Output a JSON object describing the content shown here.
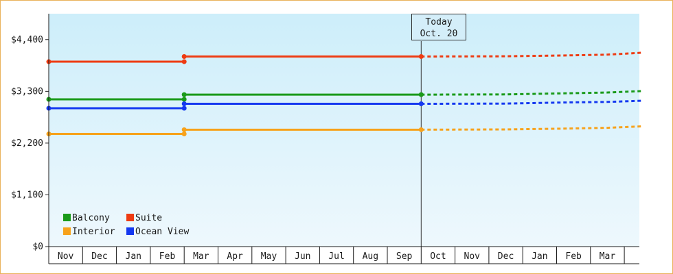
{
  "chart_data": {
    "type": "line",
    "categories": [
      "Nov",
      "Dec",
      "Jan",
      "Feb",
      "Mar",
      "Apr",
      "May",
      "Jun",
      "Jul",
      "Aug",
      "Sep",
      "Oct",
      "Nov",
      "Dec",
      "Jan",
      "Feb",
      "Mar"
    ],
    "ylim": [
      0,
      4950
    ],
    "yticks": [
      "$0",
      "$1,100",
      "$2,200",
      "$3,300",
      "$4,400"
    ],
    "ytick_values": [
      0,
      1100,
      2200,
      3300,
      4400
    ],
    "today_label": [
      "Today",
      "Oct. 20"
    ],
    "today_index": 11,
    "price_change_index": 4,
    "forecast_end_index": 17.5,
    "grid": false,
    "legend_placement": "bottom-left",
    "series": [
      {
        "name": "Suite",
        "color": "#ee3b12",
        "before": 3930,
        "after": 4040,
        "forecast": [
          [
            11,
            4040
          ],
          [
            13.5,
            4045
          ],
          [
            15,
            4060
          ],
          [
            16.5,
            4080
          ],
          [
            17.5,
            4120
          ]
        ]
      },
      {
        "name": "Balcony",
        "color": "#1a9a1a",
        "before": 3130,
        "after": 3230,
        "forecast": [
          [
            11,
            3230
          ],
          [
            13.5,
            3235
          ],
          [
            15,
            3255
          ],
          [
            16.5,
            3275
          ],
          [
            17.5,
            3305
          ]
        ]
      },
      {
        "name": "Ocean View",
        "color": "#1438f0",
        "before": 2940,
        "after": 3035,
        "forecast": [
          [
            11,
            3035
          ],
          [
            13.5,
            3040
          ],
          [
            15,
            3060
          ],
          [
            16.5,
            3075
          ],
          [
            17.5,
            3100
          ]
        ]
      },
      {
        "name": "Interior",
        "color": "#f7a21b",
        "before": 2395,
        "after": 2485,
        "forecast": [
          [
            11,
            2485
          ],
          [
            13.5,
            2490
          ],
          [
            15,
            2505
          ],
          [
            16.5,
            2525
          ],
          [
            17.5,
            2555
          ]
        ]
      }
    ],
    "legend": [
      {
        "name": "Balcony",
        "color": "#1a9a1a"
      },
      {
        "name": "Suite",
        "color": "#ee3b12"
      },
      {
        "name": "Interior",
        "color": "#f7a21b"
      },
      {
        "name": "Ocean View",
        "color": "#1438f0"
      }
    ]
  }
}
